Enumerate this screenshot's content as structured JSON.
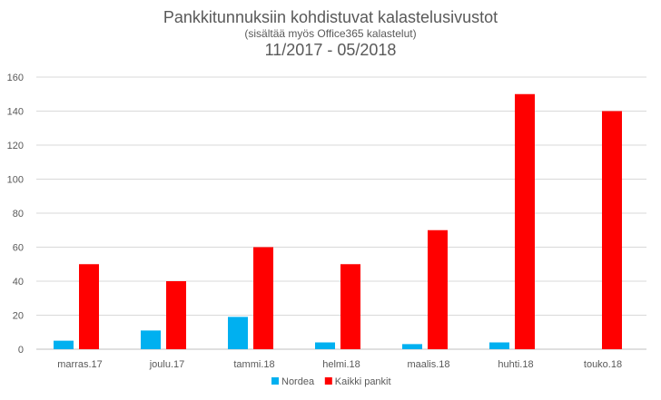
{
  "chart_data": {
    "type": "bar",
    "title": "Pankkitunnuksiin kohdistuvat kalastelusivustot",
    "subtitle": "(sisältää myös Office365 kalastelut)",
    "period": "11/2017 - 05/2018",
    "xlabel": "",
    "ylabel": "",
    "ylim": [
      0,
      160
    ],
    "yticks": [
      0,
      20,
      40,
      60,
      80,
      100,
      120,
      140,
      160
    ],
    "grid": true,
    "legend_position": "bottom",
    "categories": [
      "marras.17",
      "joulu.17",
      "tammi.18",
      "helmi.18",
      "maalis.18",
      "huhti.18",
      "touko.18"
    ],
    "series": [
      {
        "name": "Nordea",
        "color": "#00B0F0",
        "values": [
          5,
          11,
          19,
          4,
          3,
          4,
          0
        ]
      },
      {
        "name": "Kaikki pankit",
        "color": "#FF0000",
        "values": [
          50,
          40,
          60,
          50,
          70,
          150,
          140
        ]
      }
    ]
  }
}
